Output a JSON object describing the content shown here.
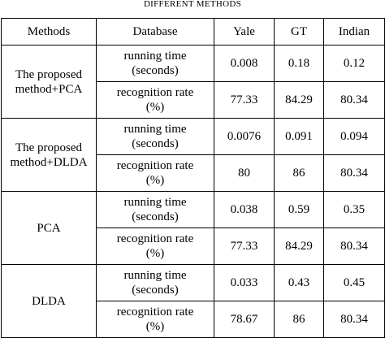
{
  "caption": "DIFFERENT METHODS",
  "table": {
    "header": [
      "Methods",
      "Database",
      "Yale",
      "GT",
      "Indian"
    ],
    "groups": [
      {
        "method": "The proposed method+PCA",
        "rows": [
          {
            "metric": "running time (seconds)",
            "values": [
              "0.008",
              "0.18",
              "0.12"
            ]
          },
          {
            "metric": "recognition rate (%)",
            "values": [
              "77.33",
              "84.29",
              "80.34"
            ]
          }
        ]
      },
      {
        "method": "The proposed method+DLDA",
        "rows": [
          {
            "metric": "running time (seconds)",
            "values": [
              "0.0076",
              "0.091",
              "0.094"
            ]
          },
          {
            "metric": "recognition rate (%)",
            "values": [
              "80",
              "86",
              "80.34"
            ]
          }
        ]
      },
      {
        "method": "PCA",
        "rows": [
          {
            "metric": "running time (seconds)",
            "values": [
              "0.038",
              "0.59",
              "0.35"
            ]
          },
          {
            "metric": "recognition rate (%)",
            "values": [
              "77.33",
              "84.29",
              "80.34"
            ]
          }
        ]
      },
      {
        "method": "DLDA",
        "rows": [
          {
            "metric": "running time (seconds)",
            "values": [
              "0.033",
              "0.43",
              "0.45"
            ]
          },
          {
            "metric": "recognition rate (%)",
            "values": [
              "78.67",
              "86",
              "80.34"
            ]
          }
        ]
      }
    ]
  }
}
